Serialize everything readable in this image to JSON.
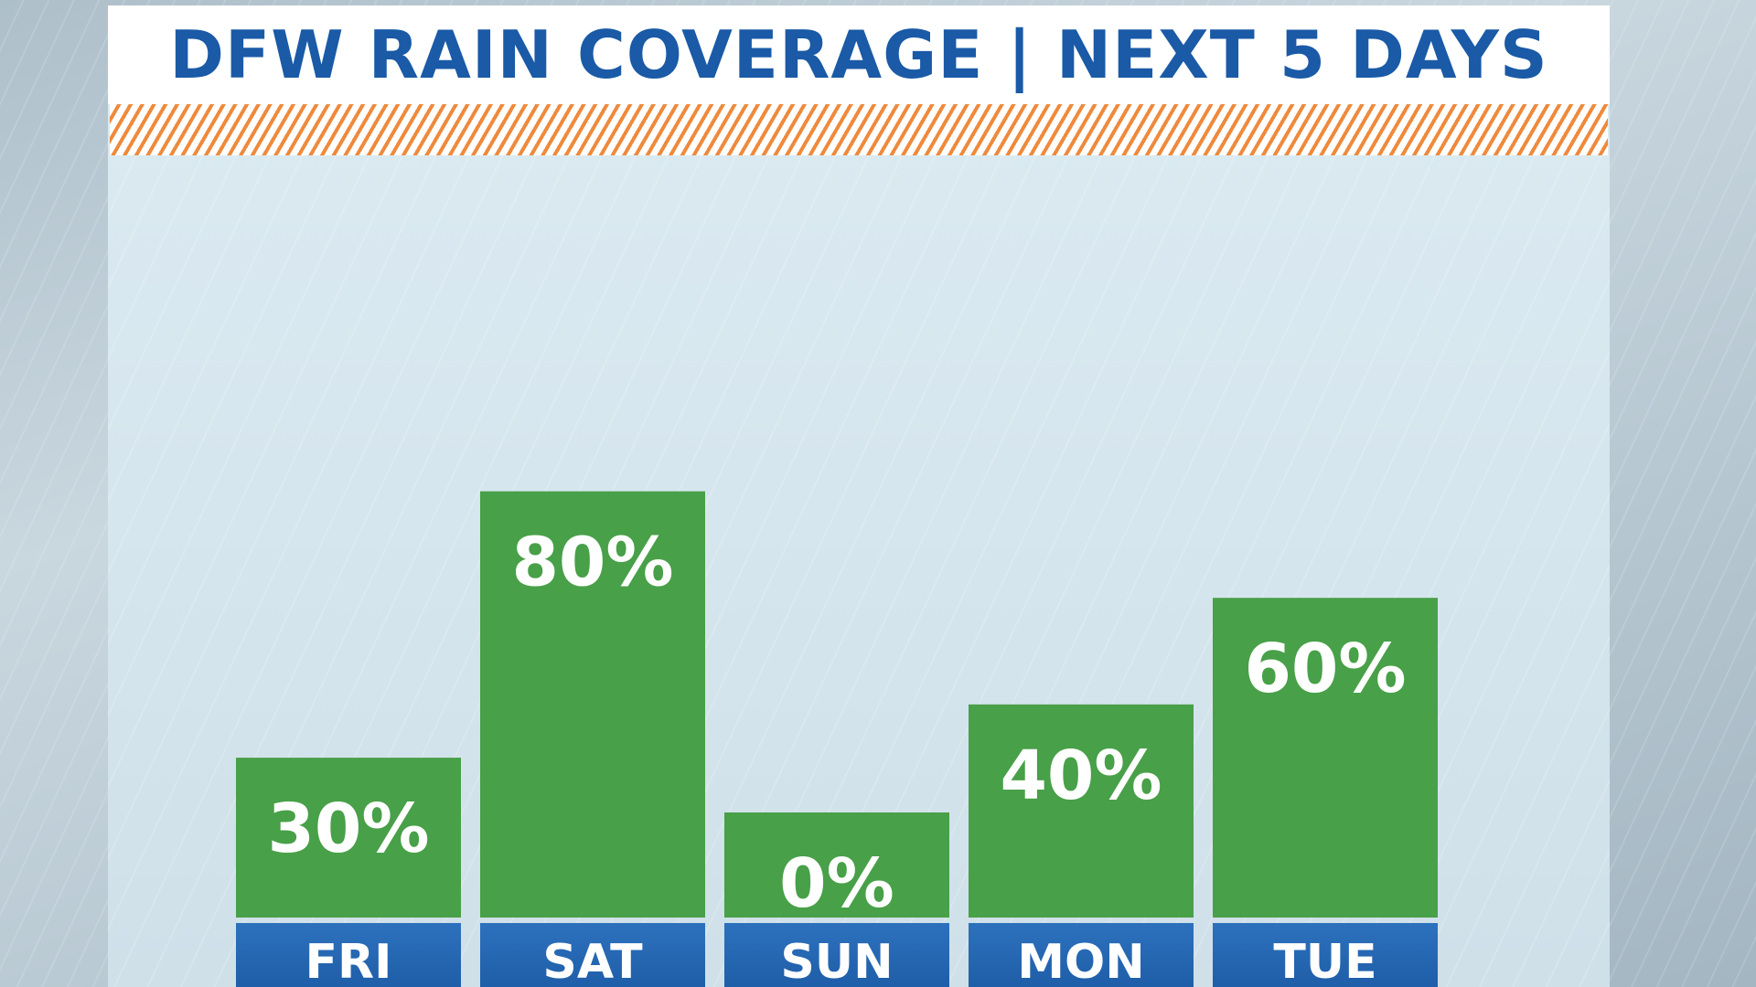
{
  "title": "DFW RAIN COVERAGE | NEXT 5 DAYS",
  "colors": {
    "title": "#1a5aa6",
    "bar": "#48a048",
    "label_band": "#1f5ea8",
    "hatch": "#ef8a3c"
  },
  "chart_data": {
    "type": "bar",
    "categories": [
      "FRI",
      "SAT",
      "SUN",
      "MON",
      "TUE"
    ],
    "values": [
      30,
      80,
      0,
      40,
      60
    ],
    "value_labels": [
      "30%",
      "80%",
      "0%",
      "40%",
      "60%"
    ],
    "unit": "%",
    "ylim": [
      0,
      100
    ],
    "grid": false
  }
}
